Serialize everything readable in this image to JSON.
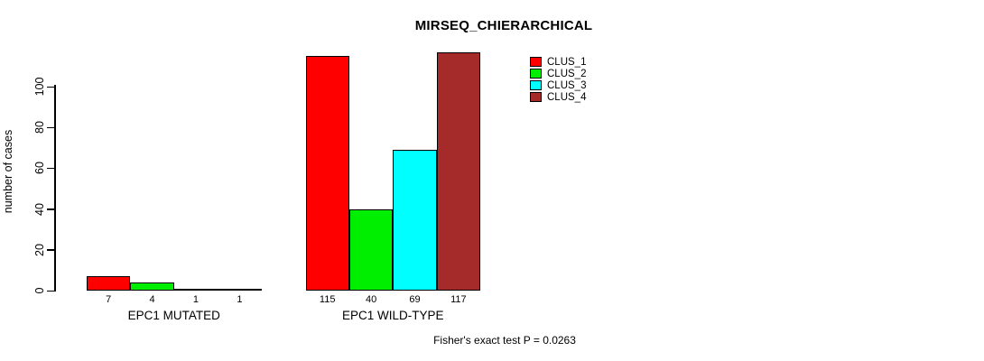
{
  "title": "MIRSEQ_CHIERARCHICAL",
  "footer": "Fisher's exact test P = 0.0263",
  "chart_data": {
    "type": "bar",
    "title": "MIRSEQ_CHIERARCHICAL",
    "xlabel": "",
    "ylabel": "number of cases",
    "categories": [
      "EPC1 MUTATED",
      "EPC1 WILD-TYPE"
    ],
    "series": [
      {
        "name": "CLUS_1",
        "color": "#FF0000",
        "values": [
          7,
          115
        ]
      },
      {
        "name": "CLUS_2",
        "color": "#00EE00",
        "values": [
          4,
          40
        ]
      },
      {
        "name": "CLUS_3",
        "color": "#00FFFF",
        "values": [
          1,
          69
        ]
      },
      {
        "name": "CLUS_4",
        "color": "#A52A2A",
        "values": [
          1,
          117
        ]
      }
    ],
    "bar_value_labels": [
      [
        7,
        4,
        1,
        1
      ],
      [
        115,
        40,
        69,
        117
      ]
    ],
    "yticks": [
      0,
      20,
      40,
      60,
      80,
      100
    ],
    "ylim": [
      0,
      118
    ],
    "grid": false,
    "legend_position": "top-right",
    "annotation": "Fisher's exact test P = 0.0263",
    "axis_color": "#000000",
    "bar_border_color": "#000000"
  }
}
